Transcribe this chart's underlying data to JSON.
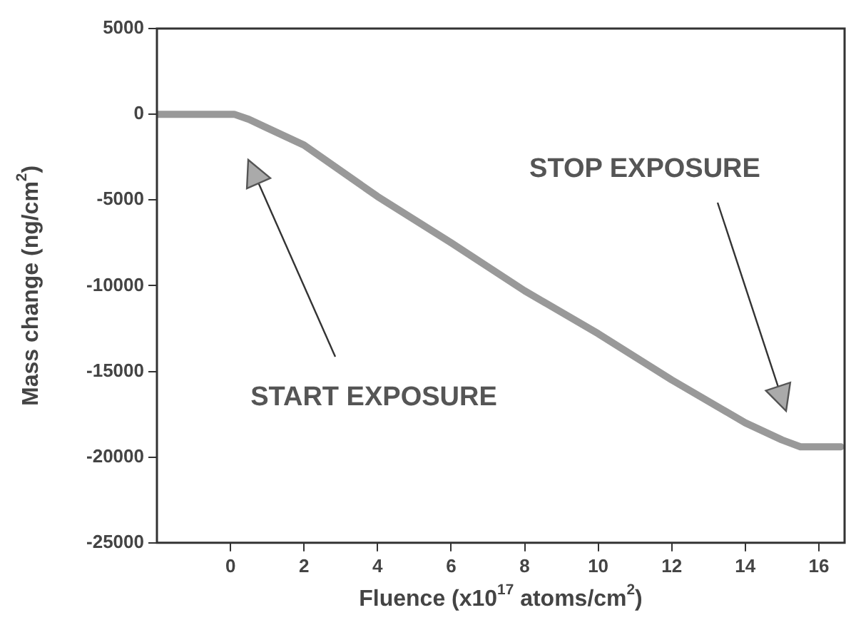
{
  "chart_data": {
    "type": "line",
    "xlabel": "Fluence (x10$^{17}$ atoms/cm$^{2}$)",
    "ylabel": "Mass change (ng/cm$^{2}$)",
    "x": [
      -2,
      0.1,
      0.5,
      1,
      2,
      4,
      6,
      8,
      10,
      12,
      14,
      15,
      15.5,
      16.6
    ],
    "series": [
      {
        "color": "#999999",
        "values": [
          0,
          0,
          -300,
          -800,
          -1800,
          -4800,
          -7500,
          -10300,
          -12800,
          -15500,
          -18000,
          -19000,
          -19400,
          -19400
        ]
      }
    ],
    "xlim": [
      -2,
      16.7
    ],
    "xticks": [
      0,
      2,
      4,
      6,
      8,
      10,
      12,
      14,
      16
    ],
    "ylim": [
      -25000,
      5000
    ],
    "yticks": [
      -25000,
      -20000,
      -15000,
      -10000,
      -5000,
      0,
      5000
    ],
    "grid": false,
    "legend": false,
    "marker": "none",
    "line_style": "solid",
    "annotations": [
      "START EXPOSURE",
      "STOP EXPOSURE"
    ]
  }
}
